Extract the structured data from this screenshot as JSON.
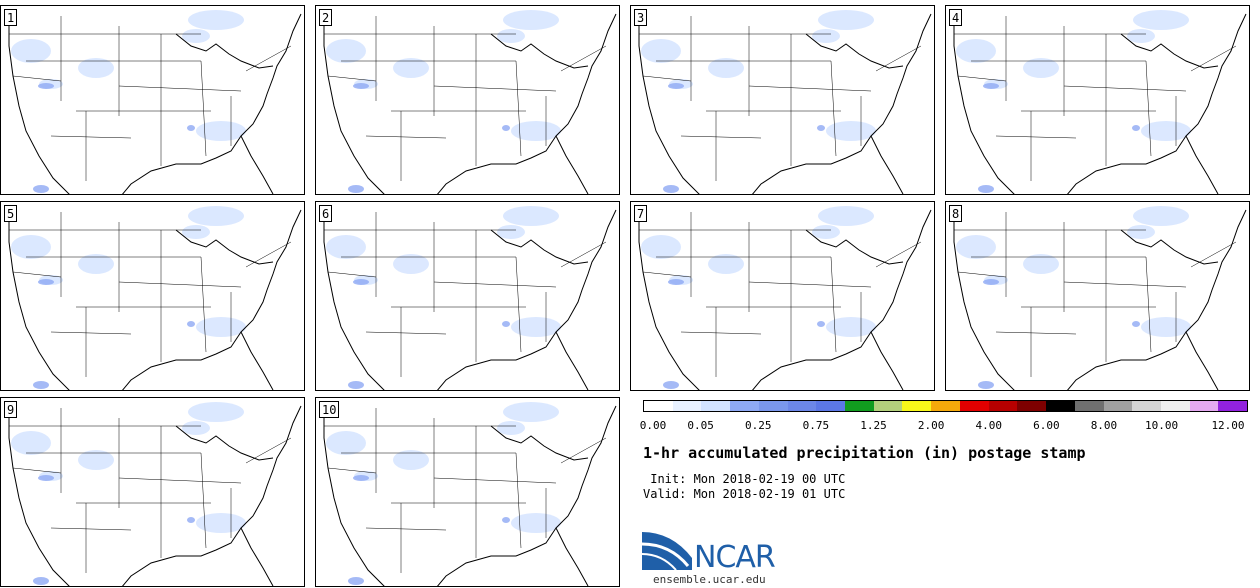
{
  "panels": [
    {
      "label": "1"
    },
    {
      "label": "2"
    },
    {
      "label": "3"
    },
    {
      "label": "4"
    },
    {
      "label": "5"
    },
    {
      "label": "6"
    },
    {
      "label": "7"
    },
    {
      "label": "8"
    },
    {
      "label": "9"
    },
    {
      "label": "10"
    }
  ],
  "colorbar": {
    "colors": [
      "#ffffff",
      "#e8f1ff",
      "#d2e3ff",
      "#8ea9f4",
      "#7a97ec",
      "#6c87e8",
      "#5c78e6",
      "#119c1f",
      "#b3d07c",
      "#f8f81a",
      "#f5a90b",
      "#e10000",
      "#b70000",
      "#7d0000",
      "#000000",
      "#707070",
      "#a0a0a0",
      "#d4d4d4",
      "#efefef",
      "#e4a9f0",
      "#9222de"
    ],
    "tick_labels": [
      "0.00",
      "0.05",
      "0.25",
      "0.75",
      "1.25",
      "2.00",
      "4.00",
      "6.00",
      "8.00",
      "10.00",
      "12.00"
    ]
  },
  "title": "1-hr accumulated precipitation (in) postage stamp",
  "init": " Init: Mon 2018-02-19 00 UTC",
  "valid": "Valid: Mon 2018-02-19 01 UTC",
  "logo": {
    "text": "NCAR",
    "url": "ensemble.ucar.edu"
  }
}
